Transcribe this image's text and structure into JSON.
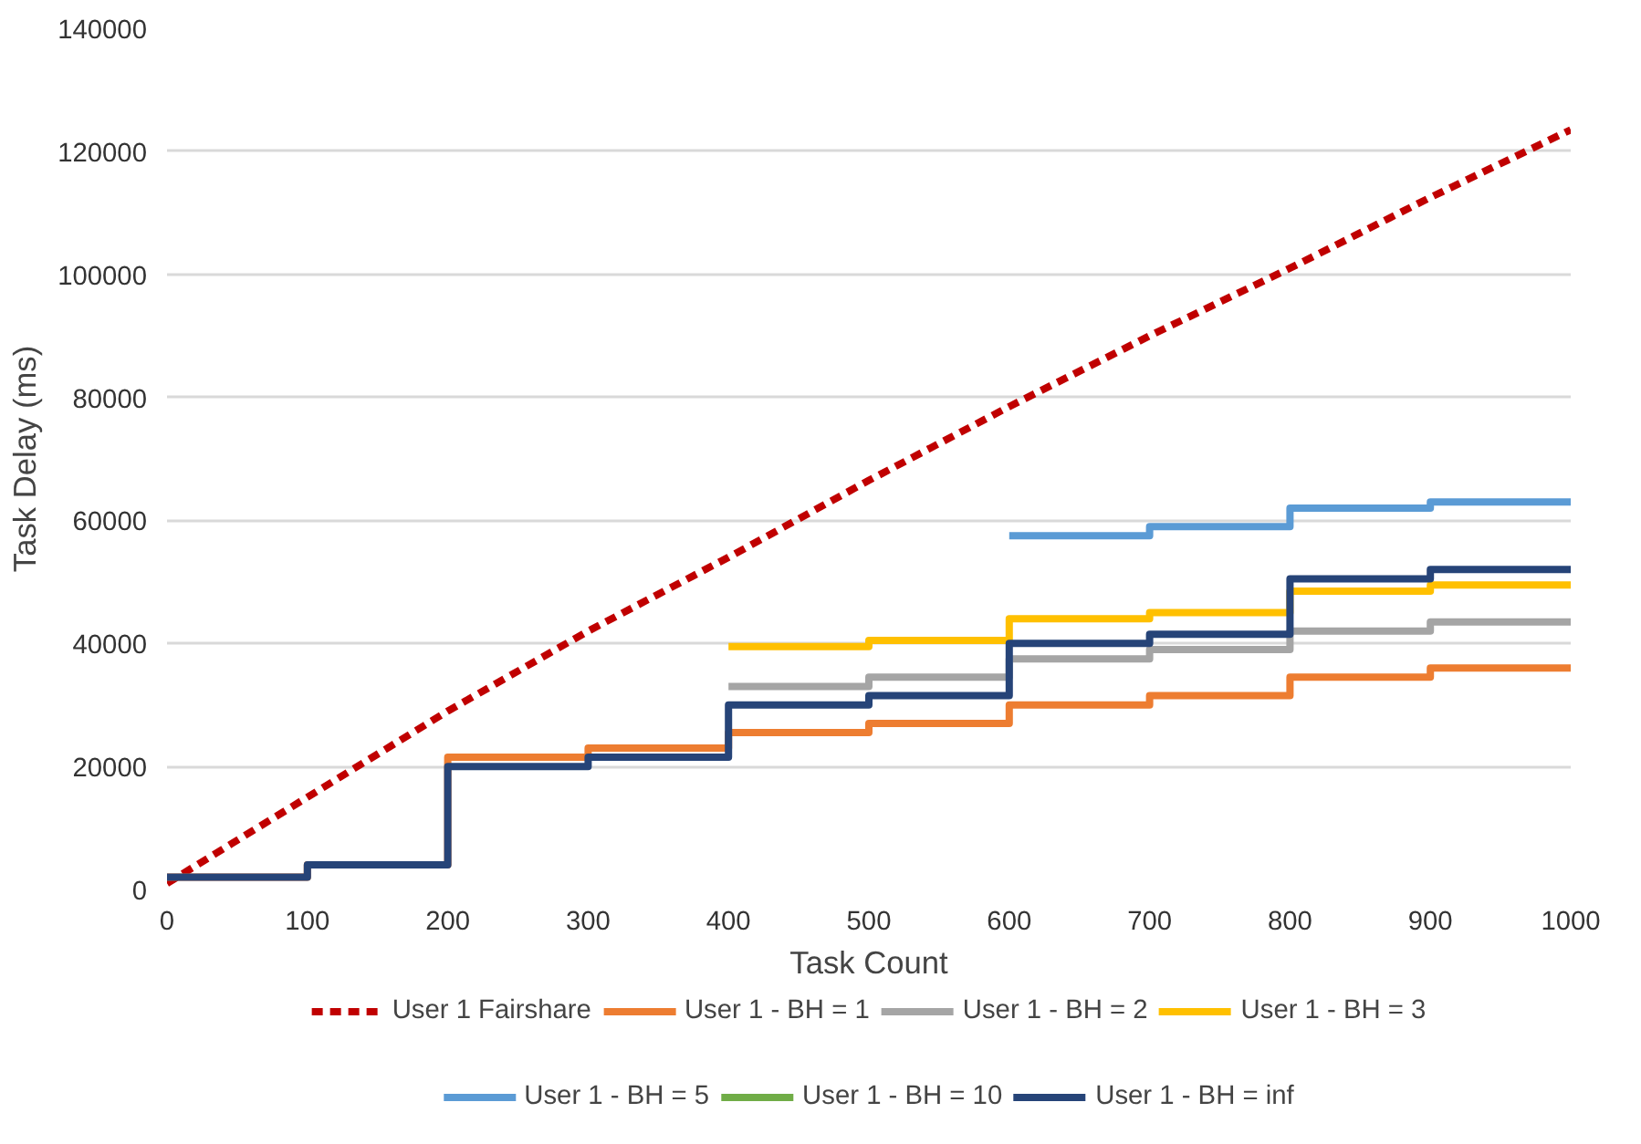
{
  "chart_data": {
    "type": "step",
    "xlabel": "Task Count",
    "ylabel": "Task Delay (ms)",
    "xlim": [
      0,
      1000
    ],
    "ylim": [
      0,
      140000
    ],
    "xticks": [
      0,
      100,
      200,
      300,
      400,
      500,
      600,
      700,
      800,
      900,
      1000
    ],
    "yticks": [
      0,
      20000,
      40000,
      60000,
      80000,
      100000,
      120000,
      140000
    ],
    "grid": "y",
    "legend": "bottom",
    "x": [
      0,
      100,
      200,
      300,
      400,
      500,
      600,
      700,
      800,
      900,
      1000
    ],
    "series": [
      {
        "name": "User 1 Fairshare",
        "type": "line",
        "line_style": "dashed",
        "color": "#c00000",
        "x": [
          0,
          100,
          200,
          300,
          400,
          500,
          600,
          700,
          800,
          900,
          1000
        ],
        "values": [
          1000,
          15000,
          29000,
          42000,
          54000,
          66500,
          78500,
          90000,
          101000,
          112500,
          123500
        ]
      },
      {
        "name": "User 1 - BH = 1",
        "color": "#ed7d31",
        "values": [
          2000,
          4000,
          21500,
          23000,
          25500,
          27000,
          30000,
          31500,
          34500,
          36000,
          36000
        ]
      },
      {
        "name": "User 1 - BH = 2",
        "color": "#a5a5a5",
        "values": [
          null,
          null,
          null,
          null,
          33000,
          34500,
          37500,
          39000,
          42000,
          43500,
          43500
        ]
      },
      {
        "name": "User 1 - BH = 3",
        "color": "#ffc000",
        "values": [
          null,
          null,
          null,
          null,
          39500,
          40500,
          44000,
          45000,
          48500,
          49500,
          49500
        ]
      },
      {
        "name": "User 1 - BH = 5",
        "color": "#5b9bd5",
        "values": [
          null,
          null,
          null,
          null,
          null,
          null,
          57500,
          59000,
          62000,
          63000,
          63000
        ]
      },
      {
        "name": "User 1 - BH = 10",
        "color": "#70ad47",
        "values": [
          null,
          null,
          null,
          null,
          null,
          null,
          null,
          null,
          null,
          null,
          null
        ]
      },
      {
        "name": "User 1 - BH = inf",
        "color": "#264478",
        "values": [
          2000,
          4000,
          20000,
          21500,
          30000,
          31500,
          40000,
          41500,
          50500,
          52000,
          52000
        ]
      }
    ]
  }
}
